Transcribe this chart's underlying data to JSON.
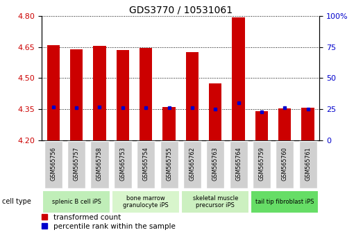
{
  "title": "GDS3770 / 10531061",
  "samples": [
    "GSM565756",
    "GSM565757",
    "GSM565758",
    "GSM565753",
    "GSM565754",
    "GSM565755",
    "GSM565762",
    "GSM565763",
    "GSM565764",
    "GSM565759",
    "GSM565760",
    "GSM565761"
  ],
  "transformed_count": [
    4.66,
    4.64,
    4.655,
    4.636,
    4.645,
    4.362,
    4.624,
    4.473,
    4.793,
    4.341,
    4.355,
    4.356
  ],
  "percentile_rank": [
    27,
    26,
    27,
    26,
    26,
    26,
    26,
    25,
    30,
    23,
    26,
    25
  ],
  "cell_types": [
    {
      "label": "splenic B cell iPS",
      "start": 0,
      "end": 3,
      "color": "#c8f0c0"
    },
    {
      "label": "bone marrow\ngranulocyte iPS",
      "start": 3,
      "end": 6,
      "color": "#e0f8d8"
    },
    {
      "label": "skeletal muscle\nprecursor iPS",
      "start": 6,
      "end": 9,
      "color": "#d8f4d0"
    },
    {
      "label": "tail tip fibroblast iPS",
      "start": 9,
      "end": 12,
      "color": "#80e880"
    }
  ],
  "ylim_left": [
    4.2,
    4.8
  ],
  "ylim_right": [
    0,
    100
  ],
  "yticks_left": [
    4.2,
    4.35,
    4.5,
    4.65,
    4.8
  ],
  "yticks_right": [
    0,
    25,
    50,
    75,
    100
  ],
  "bar_color": "#cc0000",
  "dot_color": "#0000cc",
  "background_color": "#ffffff"
}
